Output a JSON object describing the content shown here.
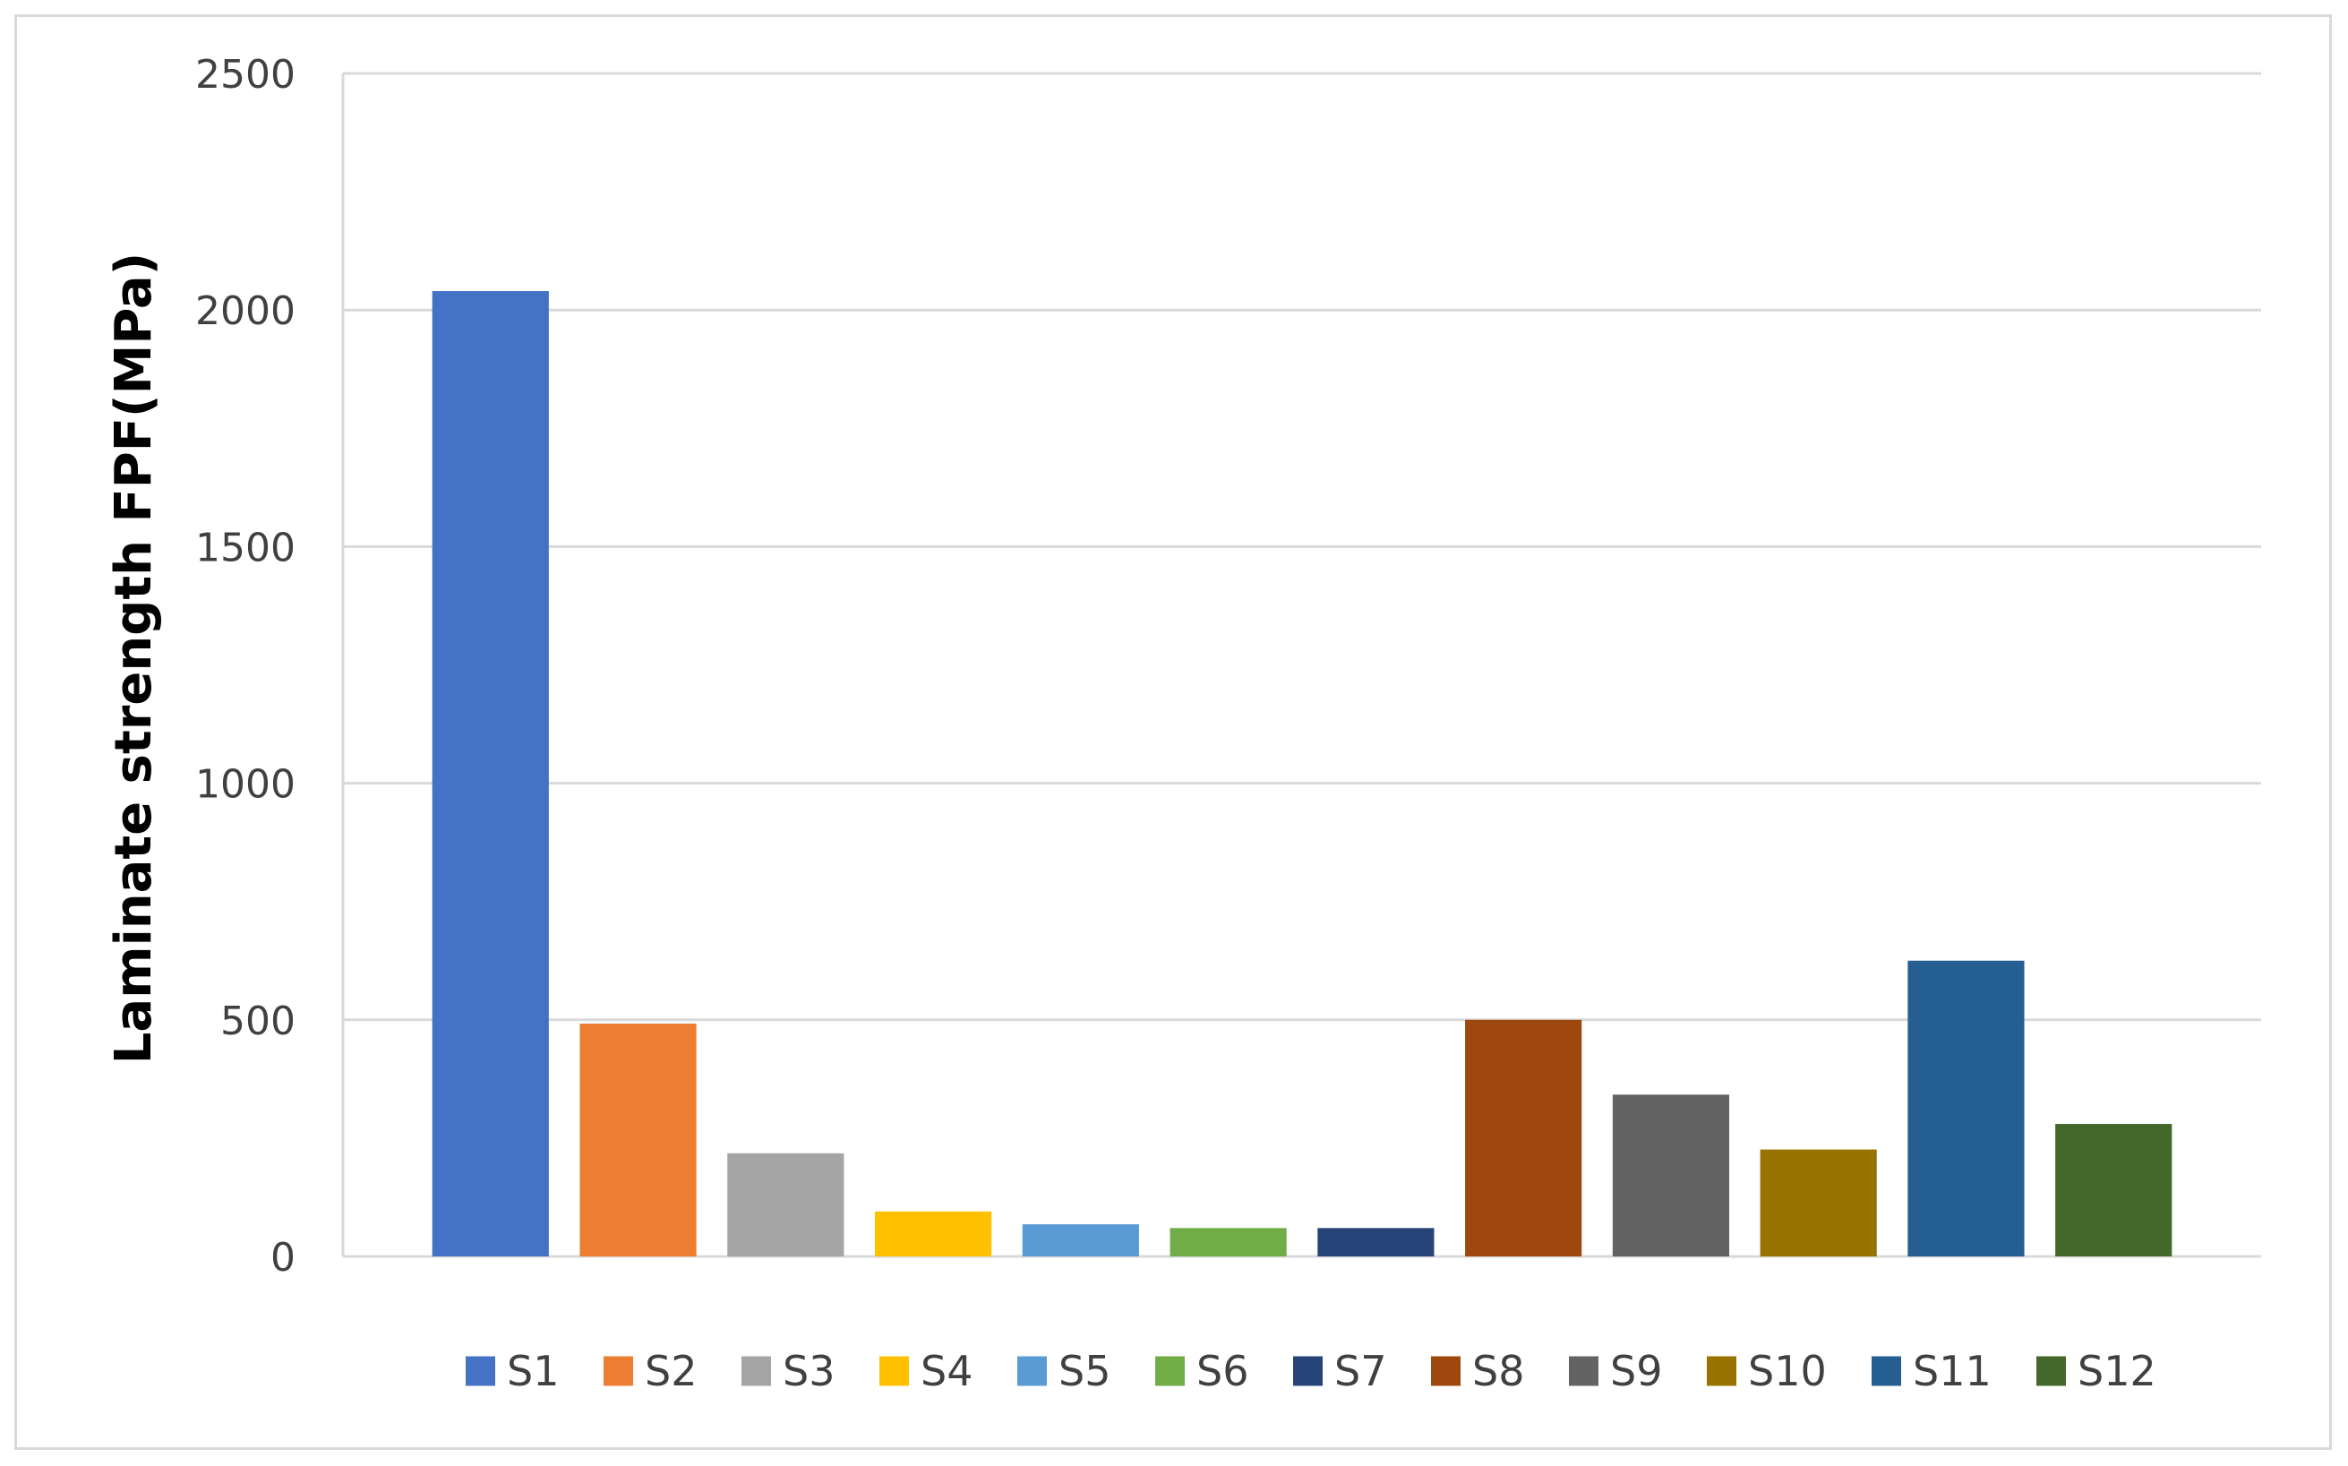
{
  "chart_data": {
    "type": "bar",
    "title": "",
    "xlabel": "",
    "ylabel": "Laminate strength FPF(MPa)",
    "ylim": [
      0,
      2500
    ],
    "yticks": [
      0,
      500,
      1000,
      1500,
      2000,
      2500
    ],
    "grid": true,
    "legend_position": "bottom",
    "series": [
      {
        "name": "S1",
        "value": 2040,
        "color": "#4472C4"
      },
      {
        "name": "S2",
        "value": 492,
        "color": "#ED7D31"
      },
      {
        "name": "S3",
        "value": 218,
        "color": "#A5A5A5"
      },
      {
        "name": "S4",
        "value": 95,
        "color": "#FFC000"
      },
      {
        "name": "S5",
        "value": 68,
        "color": "#5B9BD5"
      },
      {
        "name": "S6",
        "value": 60,
        "color": "#70AD47"
      },
      {
        "name": "S7",
        "value": 60,
        "color": "#264478"
      },
      {
        "name": "S8",
        "value": 500,
        "color": "#9E480E"
      },
      {
        "name": "S9",
        "value": 342,
        "color": "#636363"
      },
      {
        "name": "S10",
        "value": 226,
        "color": "#997300"
      },
      {
        "name": "S11",
        "value": 625,
        "color": "#255E91"
      },
      {
        "name": "S12",
        "value": 280,
        "color": "#43682B"
      }
    ]
  }
}
